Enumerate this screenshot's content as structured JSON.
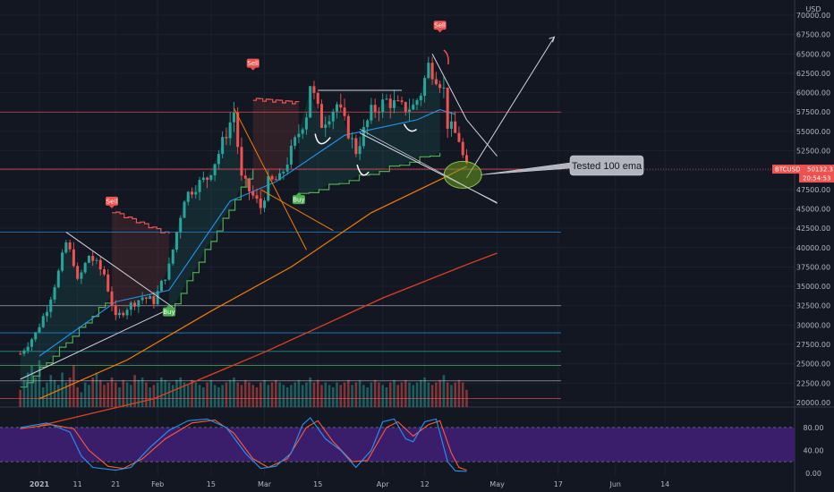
{
  "symbol": "BTCUSD",
  "currency": "USD",
  "last_price": "50132.31",
  "countdown": "20:54:53",
  "annotation": "Tested 100 ema",
  "colors": {
    "background": "#131722",
    "up": "#26a69a",
    "down": "#ef5350",
    "ema_blue": "#2196f3",
    "ema_orange": "#f57c00",
    "ema_red": "#e0401e",
    "trail_green": "#4caf50",
    "trail_red": "#ef5350",
    "stoch_k": "#2196f3",
    "stoch_d": "#ff5a36",
    "stoch_band": "#3b1e6b",
    "callout_fill": "#b2b5be",
    "highlight_ellipse": "#6a9a1f"
  },
  "chart_data": [
    {
      "type": "candlestick",
      "symbol": "BTCUSD",
      "timeframe": "1D",
      "y_axis_ticks": [
        "70000.00",
        "67500.00",
        "65000.00",
        "62500.00",
        "60000.00",
        "57500.00",
        "55000.00",
        "52500.00",
        "50000.00",
        "47500.00",
        "45000.00",
        "42500.00",
        "40000.00",
        "37500.00",
        "35000.00",
        "32500.00",
        "30000.00",
        "27500.00",
        "25000.00",
        "22500.00",
        "20000.00"
      ],
      "y_axis_unit": "USD",
      "ylim": [
        19000,
        71500
      ],
      "x_axis_ticks": [
        "2021",
        "11",
        "21",
        "Feb",
        "15",
        "Mar",
        "15",
        "Apr",
        "12",
        "May",
        "17",
        "Jun",
        "14"
      ],
      "x_axis_dates": [
        "2021-01-01",
        "2021-01-11",
        "2021-01-21",
        "2021-02-01",
        "2021-02-15",
        "2021-03-01",
        "2021-03-15",
        "2021-04-01",
        "2021-04-12",
        "2021-05-01",
        "2021-05-17",
        "2021-06-01",
        "2021-06-14"
      ],
      "close_anchors": [
        {
          "date": "2020-12-27",
          "close": 26300
        },
        {
          "date": "2020-12-31",
          "close": 28900
        },
        {
          "date": "2021-01-03",
          "close": 32200
        },
        {
          "date": "2021-01-06",
          "close": 36800
        },
        {
          "date": "2021-01-08",
          "close": 40600
        },
        {
          "date": "2021-01-10",
          "close": 38200
        },
        {
          "date": "2021-01-11",
          "close": 35500
        },
        {
          "date": "2021-01-14",
          "close": 39000
        },
        {
          "date": "2021-01-18",
          "close": 36600
        },
        {
          "date": "2021-01-21",
          "close": 30800
        },
        {
          "date": "2021-01-24",
          "close": 32300
        },
        {
          "date": "2021-01-28",
          "close": 33600
        },
        {
          "date": "2021-01-31",
          "close": 33100
        },
        {
          "date": "2021-02-04",
          "close": 37500
        },
        {
          "date": "2021-02-08",
          "close": 46500
        },
        {
          "date": "2021-02-11",
          "close": 48000
        },
        {
          "date": "2021-02-14",
          "close": 49000
        },
        {
          "date": "2021-02-17",
          "close": 52200
        },
        {
          "date": "2021-02-21",
          "close": 57500
        },
        {
          "date": "2021-02-23",
          "close": 48800
        },
        {
          "date": "2021-02-28",
          "close": 45200
        },
        {
          "date": "2021-03-02",
          "close": 48400
        },
        {
          "date": "2021-03-05",
          "close": 48800
        },
        {
          "date": "2021-03-08",
          "close": 52400
        },
        {
          "date": "2021-03-12",
          "close": 57300
        },
        {
          "date": "2021-03-13",
          "close": 61200
        },
        {
          "date": "2021-03-16",
          "close": 56000
        },
        {
          "date": "2021-03-20",
          "close": 58500
        },
        {
          "date": "2021-03-25",
          "close": 52500
        },
        {
          "date": "2021-03-29",
          "close": 57500
        },
        {
          "date": "2021-04-02",
          "close": 59000
        },
        {
          "date": "2021-04-06",
          "close": 58000
        },
        {
          "date": "2021-04-09",
          "close": 58200
        },
        {
          "date": "2021-04-11",
          "close": 60000
        },
        {
          "date": "2021-04-13",
          "close": 63500
        },
        {
          "date": "2021-04-16",
          "close": 61500
        },
        {
          "date": "2021-04-17",
          "close": 60300
        },
        {
          "date": "2021-04-18",
          "close": 56000
        },
        {
          "date": "2021-04-21",
          "close": 54000
        },
        {
          "date": "2021-04-22",
          "close": 51700
        },
        {
          "date": "2021-04-23",
          "close": 50132
        }
      ],
      "ema_20": [
        {
          "date": "2021-01-01",
          "value": 26000
        },
        {
          "date": "2021-01-21",
          "value": 33000
        },
        {
          "date": "2021-02-04",
          "value": 34500
        },
        {
          "date": "2021-02-20",
          "value": 46000
        },
        {
          "date": "2021-03-04",
          "value": 48500
        },
        {
          "date": "2021-03-22",
          "value": 54500
        },
        {
          "date": "2021-04-10",
          "value": 56500
        },
        {
          "date": "2021-04-16",
          "value": 57800
        },
        {
          "date": "2021-04-20",
          "value": 57200
        }
      ],
      "ema_100": [
        {
          "date": "2021-01-01",
          "value": 20500
        },
        {
          "date": "2021-01-24",
          "value": 25500
        },
        {
          "date": "2021-02-15",
          "value": 31800
        },
        {
          "date": "2021-03-08",
          "value": 37500
        },
        {
          "date": "2021-03-29",
          "value": 44500
        },
        {
          "date": "2021-04-17",
          "value": 49000
        },
        {
          "date": "2021-04-23",
          "value": 50500
        }
      ],
      "ema_200": [
        {
          "date": "2021-01-01",
          "value": 17000
        },
        {
          "date": "2021-01-31",
          "value": 20500
        },
        {
          "date": "2021-03-01",
          "value": 26500
        },
        {
          "date": "2021-04-01",
          "value": 33500
        },
        {
          "date": "2021-04-23",
          "value": 37800
        },
        {
          "date": "2021-05-01",
          "value": 39300
        }
      ],
      "horizontal_levels": [
        {
          "value": 57500,
          "color": "#ef5350"
        },
        {
          "value": 50132,
          "color": "#ef5350"
        },
        {
          "value": 42000,
          "color": "#2196f3"
        },
        {
          "value": 32500,
          "color": "#b2b5be"
        },
        {
          "value": 29000,
          "color": "#2196f3"
        },
        {
          "value": 26600,
          "color": "#26a69a"
        },
        {
          "value": 24800,
          "color": "#4caf50"
        },
        {
          "value": 22800,
          "color": "#b2b5be"
        },
        {
          "value": 20500,
          "color": "#ef5350"
        }
      ],
      "signals": [
        {
          "label": "Sell",
          "date": "2021-01-20",
          "price": 46000,
          "side": "sell"
        },
        {
          "label": "Buy",
          "date": "2021-02-04",
          "price": 31700,
          "side": "buy"
        },
        {
          "label": "Sell",
          "date": "2021-02-26",
          "price": 63800,
          "side": "sell"
        },
        {
          "label": "Buy",
          "date": "2021-03-10",
          "price": 46200,
          "side": "buy"
        },
        {
          "label": "Sell",
          "date": "2021-04-16",
          "price": 68700,
          "side": "sell"
        }
      ],
      "volume_relative": [
        0.35,
        0.55,
        0.7,
        0.85,
        0.6,
        0.95,
        0.4,
        0.5,
        0.65,
        0.55,
        0.45,
        0.7,
        0.5,
        0.6,
        0.85,
        0.4,
        0.3,
        0.5,
        0.45,
        0.6,
        0.7,
        0.55,
        0.45,
        0.5,
        0.6,
        0.5,
        0.4,
        0.55,
        0.5,
        0.45,
        0.65,
        0.55,
        0.6,
        0.5,
        0.4,
        0.45,
        0.5,
        0.6,
        0.55,
        0.5,
        0.45,
        0.55,
        0.6,
        0.5,
        0.45,
        0.55,
        0.5,
        0.45,
        0.4,
        0.5,
        0.55,
        0.45,
        0.4,
        0.45,
        0.5,
        0.55,
        0.6,
        0.5,
        0.45,
        0.55,
        0.5,
        0.45,
        0.4,
        0.5,
        0.55,
        0.45,
        0.5,
        0.55,
        0.5,
        0.45,
        0.4,
        0.45,
        0.5,
        0.55,
        0.45,
        0.5,
        0.6,
        0.5,
        0.55,
        0.45,
        0.5,
        0.45,
        0.4,
        0.5,
        0.45,
        0.5,
        0.55,
        0.45,
        0.5,
        0.55,
        0.45,
        0.4,
        0.5,
        0.55,
        0.5,
        0.45,
        0.4,
        0.5,
        0.55,
        0.45,
        0.5,
        0.55,
        0.5,
        0.45,
        0.5,
        0.55,
        0.6,
        0.5,
        0.45,
        0.5,
        0.55,
        0.65,
        0.5,
        0.45,
        0.5,
        0.55,
        0.5
      ],
      "volume_relative_note": "",
      "stoch_ticks": [
        "80.00",
        "40.00",
        "0.00"
      ],
      "stoch_ylim": [
        -5,
        105
      ],
      "stoch_band": [
        20,
        80
      ],
      "stoch_k_anchors": [
        {
          "date": "2020-12-27",
          "value": 80
        },
        {
          "date": "2021-01-03",
          "value": 88
        },
        {
          "date": "2021-01-09",
          "value": 72
        },
        {
          "date": "2021-01-12",
          "value": 30
        },
        {
          "date": "2021-01-15",
          "value": 10
        },
        {
          "date": "2021-01-21",
          "value": 5
        },
        {
          "date": "2021-01-25",
          "value": 10
        },
        {
          "date": "2021-01-30",
          "value": 45
        },
        {
          "date": "2021-02-04",
          "value": 75
        },
        {
          "date": "2021-02-09",
          "value": 92
        },
        {
          "date": "2021-02-14",
          "value": 95
        },
        {
          "date": "2021-02-19",
          "value": 80
        },
        {
          "date": "2021-02-24",
          "value": 35
        },
        {
          "date": "2021-02-28",
          "value": 8
        },
        {
          "date": "2021-03-04",
          "value": 12
        },
        {
          "date": "2021-03-08",
          "value": 35
        },
        {
          "date": "2021-03-11",
          "value": 85
        },
        {
          "date": "2021-03-13",
          "value": 97
        },
        {
          "date": "2021-03-17",
          "value": 60
        },
        {
          "date": "2021-03-21",
          "value": 40
        },
        {
          "date": "2021-03-25",
          "value": 10
        },
        {
          "date": "2021-03-29",
          "value": 40
        },
        {
          "date": "2021-04-01",
          "value": 90
        },
        {
          "date": "2021-04-04",
          "value": 95
        },
        {
          "date": "2021-04-07",
          "value": 60
        },
        {
          "date": "2021-04-09",
          "value": 55
        },
        {
          "date": "2021-04-12",
          "value": 90
        },
        {
          "date": "2021-04-15",
          "value": 95
        },
        {
          "date": "2021-04-18",
          "value": 20
        },
        {
          "date": "2021-04-20",
          "value": 4
        },
        {
          "date": "2021-04-23",
          "value": 3
        }
      ],
      "stoch_d_anchors": [
        {
          "date": "2020-12-27",
          "value": 78
        },
        {
          "date": "2021-01-04",
          "value": 85
        },
        {
          "date": "2021-01-10",
          "value": 78
        },
        {
          "date": "2021-01-14",
          "value": 40
        },
        {
          "date": "2021-01-19",
          "value": 12
        },
        {
          "date": "2021-01-23",
          "value": 8
        },
        {
          "date": "2021-01-28",
          "value": 25
        },
        {
          "date": "2021-02-03",
          "value": 60
        },
        {
          "date": "2021-02-10",
          "value": 88
        },
        {
          "date": "2021-02-16",
          "value": 93
        },
        {
          "date": "2021-02-21",
          "value": 70
        },
        {
          "date": "2021-02-26",
          "value": 25
        },
        {
          "date": "2021-03-02",
          "value": 10
        },
        {
          "date": "2021-03-07",
          "value": 25
        },
        {
          "date": "2021-03-12",
          "value": 80
        },
        {
          "date": "2021-03-15",
          "value": 92
        },
        {
          "date": "2021-03-19",
          "value": 55
        },
        {
          "date": "2021-03-24",
          "value": 20
        },
        {
          "date": "2021-03-28",
          "value": 22
        },
        {
          "date": "2021-04-02",
          "value": 80
        },
        {
          "date": "2021-04-05",
          "value": 90
        },
        {
          "date": "2021-04-09",
          "value": 65
        },
        {
          "date": "2021-04-13",
          "value": 85
        },
        {
          "date": "2021-04-16",
          "value": 92
        },
        {
          "date": "2021-04-19",
          "value": 35
        },
        {
          "date": "2021-04-21",
          "value": 10
        },
        {
          "date": "2021-04-23",
          "value": 5
        }
      ]
    }
  ]
}
